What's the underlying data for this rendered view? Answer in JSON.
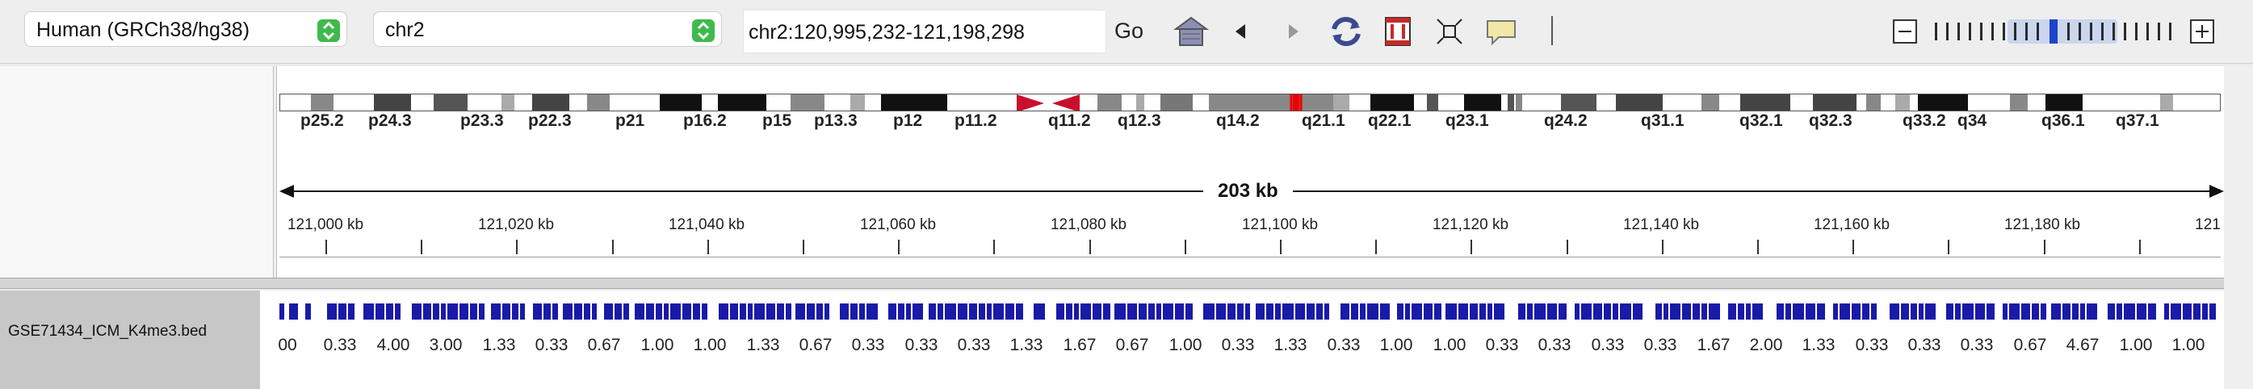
{
  "toolbar": {
    "genome": "Human (GRCh38/hg38)",
    "chromosome": "chr2",
    "locus": "chr2:120,995,232-121,198,298",
    "go_label": "Go",
    "icons": [
      "home-icon",
      "back-icon",
      "forward-icon",
      "refresh-icon",
      "roi-icon",
      "resize-icon",
      "popup-text-icon"
    ]
  },
  "ideogram": {
    "bands": [
      "p25.2",
      "p24.3",
      "p23.3",
      "p22.3",
      "p21",
      "p16.2",
      "p15",
      "p13.3",
      "p12",
      "p11.2",
      "q11.2",
      "q12.3",
      "q14.2",
      "q21.1",
      "q22.1",
      "q23.1",
      "q24.2",
      "q31.1",
      "q32.1",
      "q32.3",
      "q33.2",
      "q34",
      "q36.1",
      "q37.1"
    ]
  },
  "ruler": {
    "span": "203 kb",
    "ticks": [
      "121,000 kb",
      "121,020 kb",
      "121,040 kb",
      "121,060 kb",
      "121,080 kb",
      "121,100 kb",
      "121,120 kb",
      "121,140 kb",
      "121,160 kb",
      "121,180 kb",
      "121"
    ]
  },
  "track": {
    "name": "GSE71434_ICM_K4me3.bed",
    "feature_color": "#1a1aa8",
    "scores": [
      "00",
      "0.33",
      "4.00",
      "3.00",
      "1.33",
      "0.33",
      "0.67",
      "1.00",
      "1.00",
      "1.33",
      "0.67",
      "0.33",
      "0.33",
      "0.33",
      "1.33",
      "1.67",
      "0.67",
      "1.00",
      "0.33",
      "1.33",
      "0.33",
      "1.00",
      "1.00",
      "0.33",
      "0.33",
      "0.33",
      "0.33",
      "1.67",
      "2.00",
      "1.33",
      "0.33",
      "0.33",
      "0.33",
      "0.67",
      "4.67",
      "1.00",
      "1.00"
    ]
  }
}
